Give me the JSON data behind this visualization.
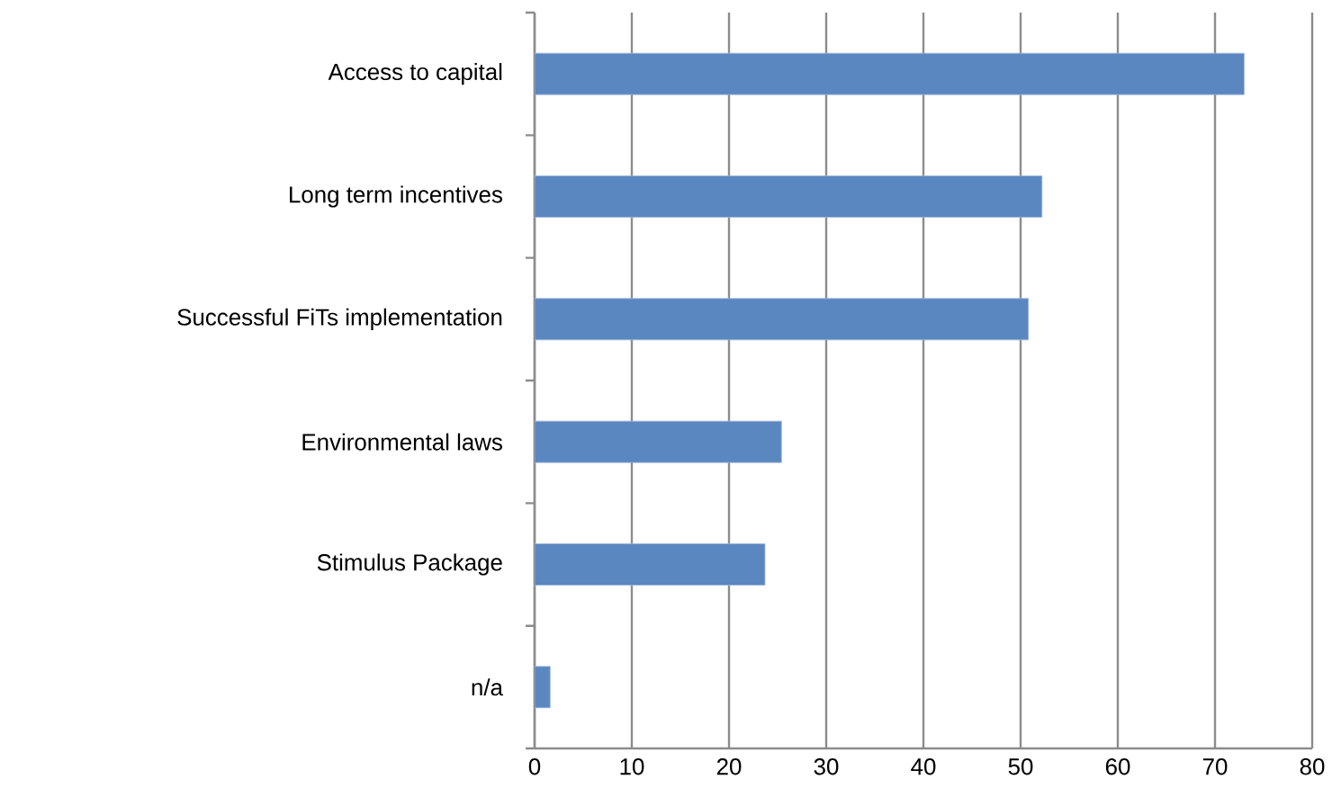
{
  "chart_data": {
    "type": "bar",
    "orientation": "horizontal",
    "categories": [
      "Access to capital",
      "Long term incentives",
      "Successful FiTs implementation",
      "Environmental laws",
      "Stimulus Package",
      "n/a"
    ],
    "values": [
      73,
      52.2,
      50.8,
      25.4,
      23.7,
      1.6
    ],
    "color": "#5b87c0",
    "xlim": [
      0,
      80
    ],
    "xticks": [
      0,
      10,
      20,
      30,
      40,
      50,
      60,
      70,
      80
    ],
    "grid": "x"
  }
}
